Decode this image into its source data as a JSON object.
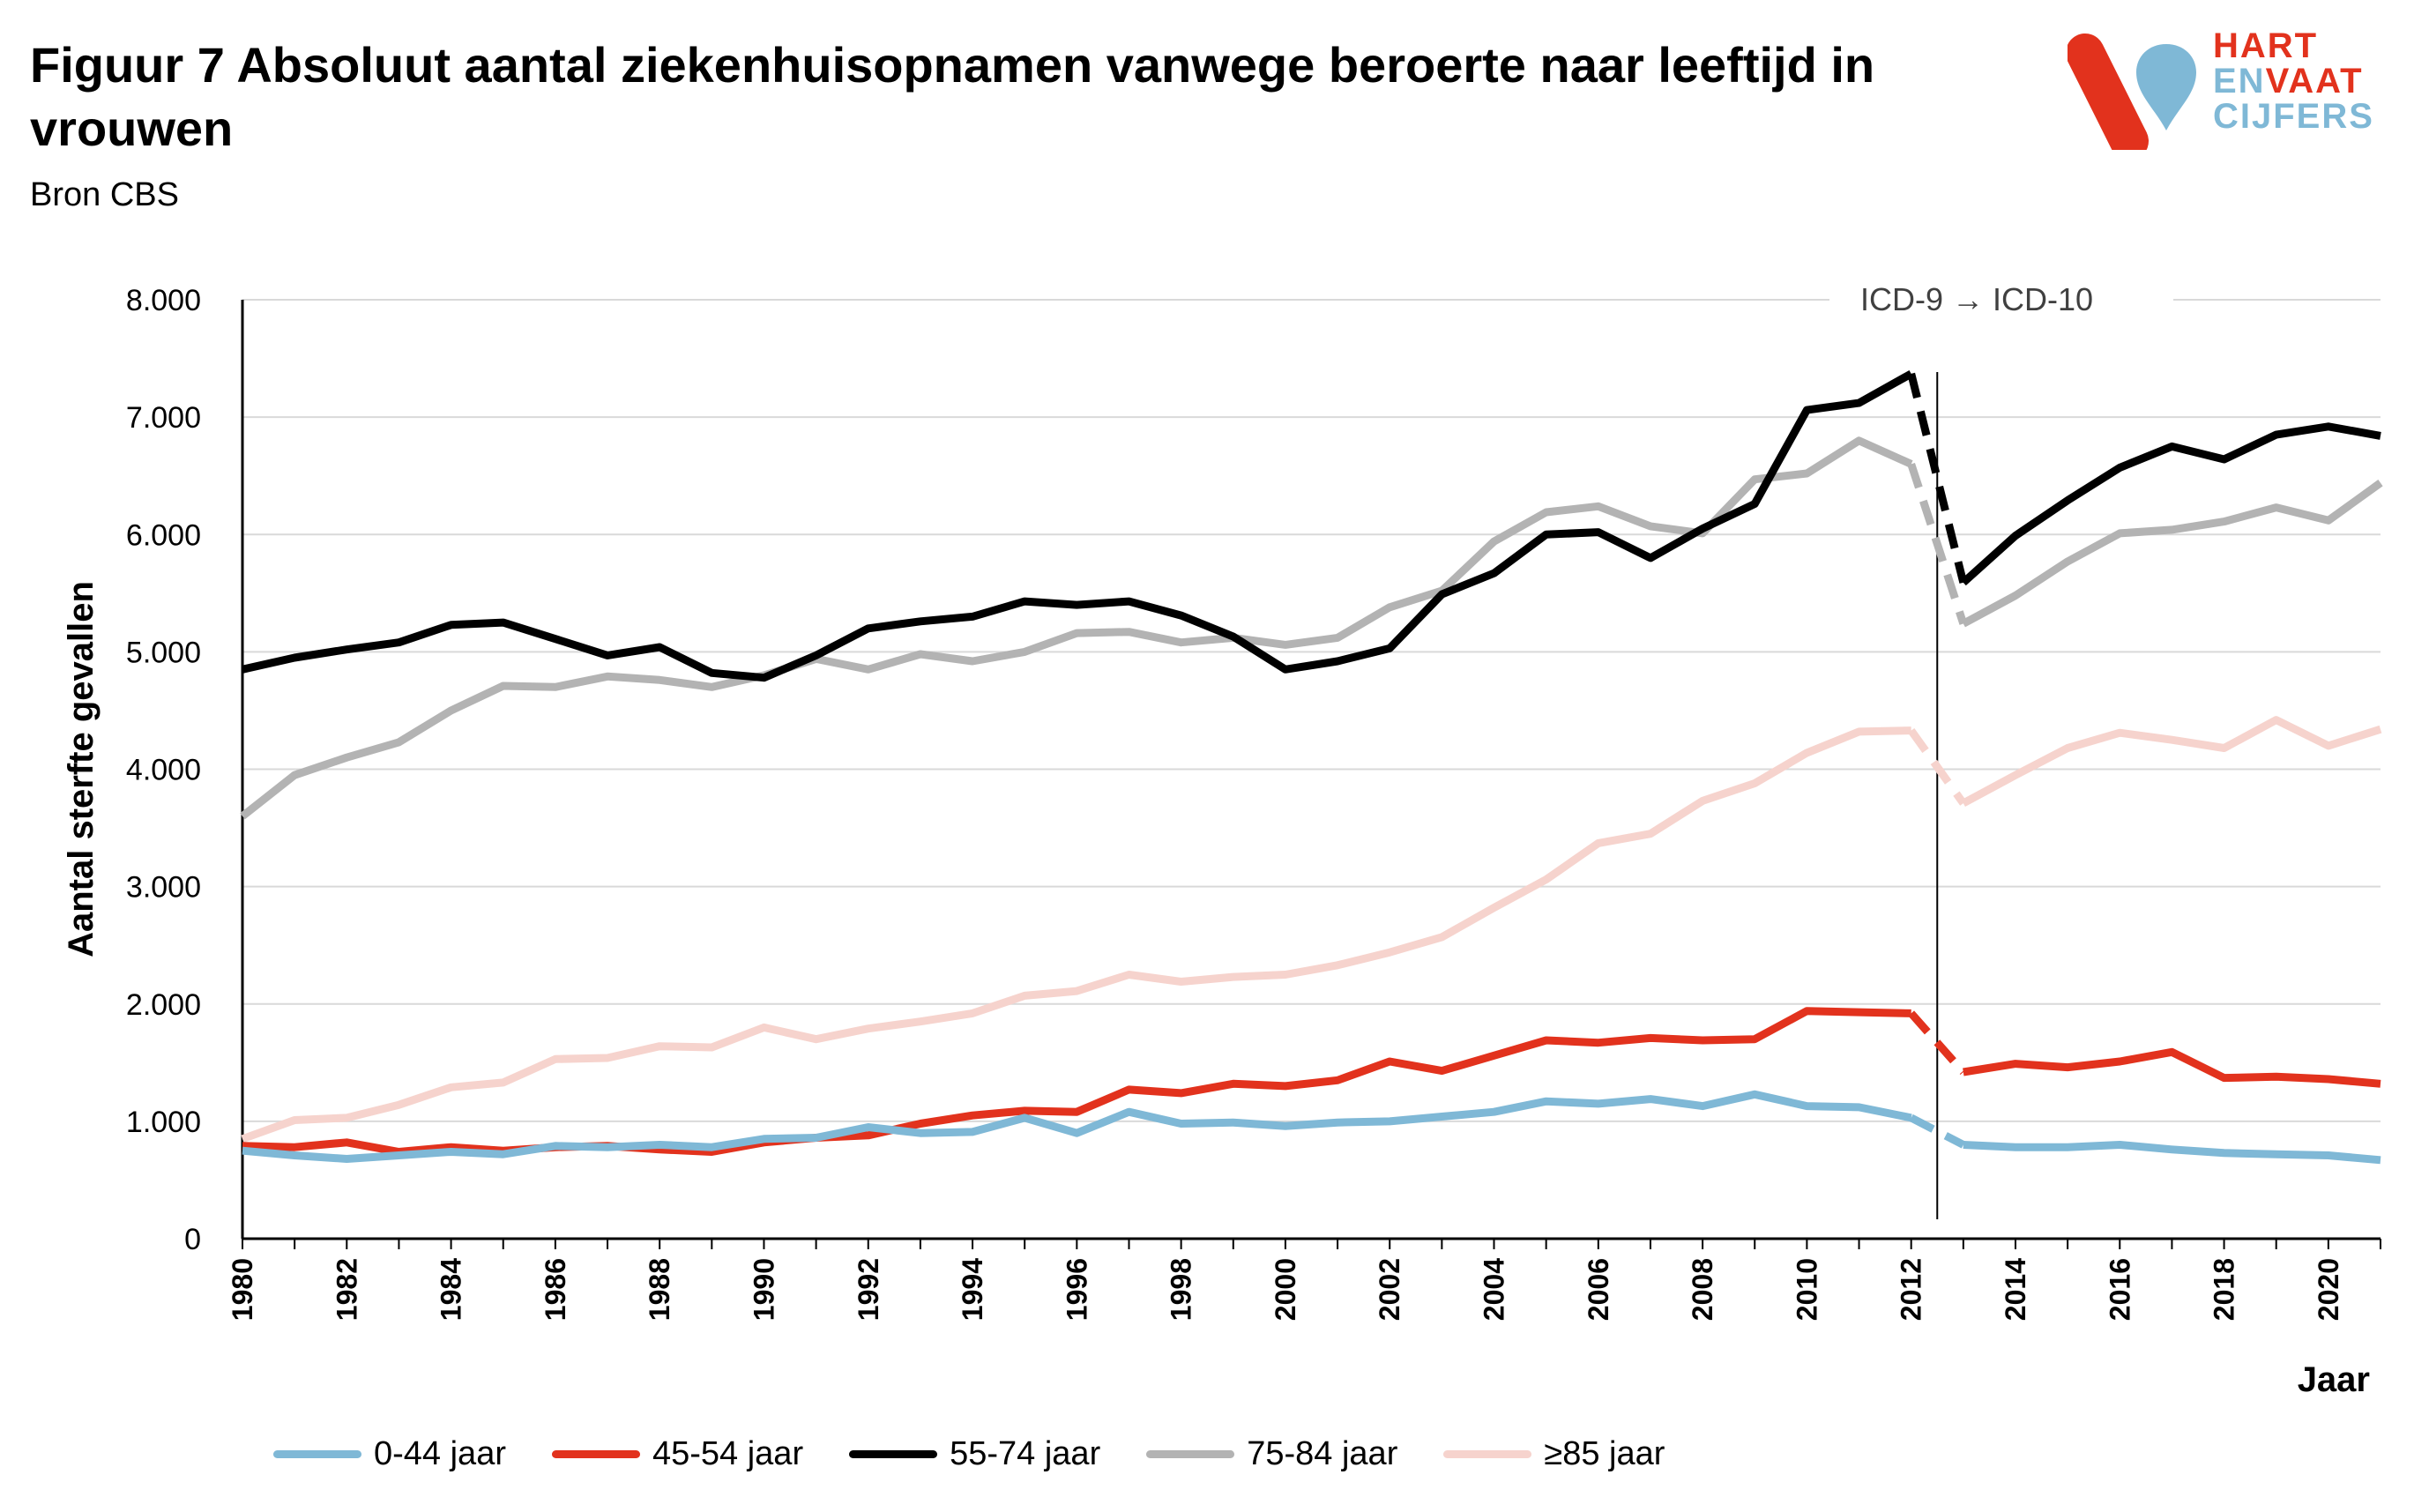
{
  "title": "Figuur 7 Absoluut aantal ziekenhuisopnamen vanwege beroerte naar leeftijd in vrouwen",
  "subtitle": "Bron CBS",
  "logo": {
    "line1": "HART",
    "line2a": "EN",
    "line2b": "VAAT",
    "line3": "CIJFERS"
  },
  "chart_data": {
    "type": "line",
    "xlabel": "Jaar",
    "ylabel": "Aantal sterfte gevallen",
    "xlim": [
      1980,
      2021
    ],
    "ylim": [
      0,
      8000
    ],
    "yticks": [
      0,
      1000,
      2000,
      3000,
      4000,
      5000,
      6000,
      7000,
      8000
    ],
    "ytick_labels": [
      "0",
      "1.000",
      "2.000",
      "3.000",
      "4.000",
      "5.000",
      "6.000",
      "7.000",
      "8.000"
    ],
    "xticks": [
      1980,
      1982,
      1984,
      1986,
      1988,
      1990,
      1992,
      1994,
      1996,
      1998,
      2000,
      2002,
      2004,
      2006,
      2008,
      2010,
      2012,
      2014,
      2016,
      2018,
      2020
    ],
    "grid": "horizontal",
    "legend_position": "bottom",
    "annotation": {
      "text": "ICD-9 → ICD-10",
      "x": 2012.5
    },
    "x": [
      1980,
      1981,
      1982,
      1983,
      1984,
      1985,
      1986,
      1987,
      1988,
      1989,
      1990,
      1991,
      1992,
      1993,
      1994,
      1995,
      1996,
      1997,
      1998,
      1999,
      2000,
      2001,
      2002,
      2003,
      2004,
      2005,
      2006,
      2007,
      2008,
      2009,
      2010,
      2011,
      2012,
      2013,
      2014,
      2015,
      2016,
      2017,
      2018,
      2019,
      2020,
      2021
    ],
    "break_between": [
      2012,
      2013
    ],
    "series": [
      {
        "name": "0-44 jaar",
        "color": "#7fb8d6",
        "values": [
          750,
          710,
          680,
          710,
          740,
          720,
          790,
          780,
          800,
          780,
          850,
          860,
          950,
          900,
          910,
          1030,
          900,
          1080,
          980,
          990,
          960,
          990,
          1000,
          1040,
          1080,
          1170,
          1150,
          1190,
          1130,
          1230,
          1130,
          1120,
          1030,
          800,
          780,
          780,
          800,
          760,
          730,
          720,
          710,
          670
        ]
      },
      {
        "name": "45-54 jaar",
        "color": "#e2321d",
        "values": [
          790,
          780,
          820,
          740,
          780,
          750,
          780,
          790,
          760,
          740,
          820,
          860,
          880,
          980,
          1050,
          1090,
          1080,
          1270,
          1240,
          1320,
          1300,
          1350,
          1510,
          1430,
          1560,
          1690,
          1670,
          1710,
          1690,
          1700,
          1940,
          1930,
          1920,
          1420,
          1490,
          1460,
          1510,
          1590,
          1370,
          1380,
          1360,
          1320
        ]
      },
      {
        "name": "55-74 jaar",
        "color": "#000000",
        "values": [
          4850,
          4950,
          5020,
          5080,
          5230,
          5250,
          5110,
          4970,
          5040,
          4820,
          4780,
          4970,
          5200,
          5260,
          5300,
          5430,
          5400,
          5430,
          5310,
          5130,
          4850,
          4920,
          5030,
          5490,
          5670,
          6000,
          6020,
          5800,
          6050,
          6260,
          7060,
          7120,
          7370,
          5590,
          5990,
          6290,
          6570,
          6750,
          6640,
          6850,
          6920,
          6840
        ]
      },
      {
        "name": "75-84 jaar",
        "color": "#b3b3b3",
        "values": [
          3600,
          3950,
          4100,
          4230,
          4500,
          4710,
          4700,
          4790,
          4760,
          4700,
          4800,
          4940,
          4850,
          4980,
          4920,
          5000,
          5160,
          5170,
          5080,
          5120,
          5060,
          5120,
          5380,
          5520,
          5940,
          6190,
          6240,
          6070,
          6010,
          6470,
          6520,
          6800,
          6600,
          5240,
          5480,
          5770,
          6010,
          6040,
          6110,
          6230,
          6120,
          6440
        ]
      },
      {
        "name": "≥85 jaar",
        "color": "#f6d3cd",
        "values": [
          850,
          1010,
          1030,
          1140,
          1290,
          1330,
          1530,
          1540,
          1640,
          1630,
          1800,
          1700,
          1790,
          1850,
          1920,
          2070,
          2110,
          2250,
          2190,
          2230,
          2250,
          2330,
          2440,
          2570,
          2820,
          3060,
          3370,
          3450,
          3730,
          3880,
          4140,
          4320,
          4330,
          3710,
          3950,
          4180,
          4310,
          4250,
          4180,
          4420,
          4200,
          4340
        ]
      }
    ]
  }
}
